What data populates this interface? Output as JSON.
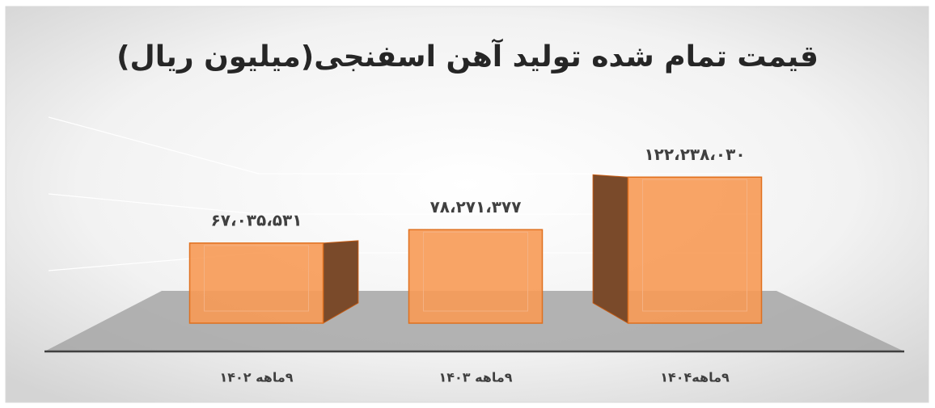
{
  "chart_data": {
    "type": "bar3d",
    "title": "قیمت تمام شده تولید آهن اسفنجی(میلیون ریال)",
    "categories": [
      "۹ماهه ۱۴۰۲",
      "۹ماهه ۱۴۰۳",
      "۹ماهه۱۴۰۴"
    ],
    "values": [
      67035531,
      78271377,
      122238030
    ],
    "value_labels": [
      "۶۷،۰۳۵،۵۳۱",
      "۷۸،۲۷۱،۳۷۷",
      "۱۲۲،۲۳۸،۰۳۰"
    ],
    "color": "#f79a55",
    "ylim": [
      0,
      140000000
    ]
  }
}
